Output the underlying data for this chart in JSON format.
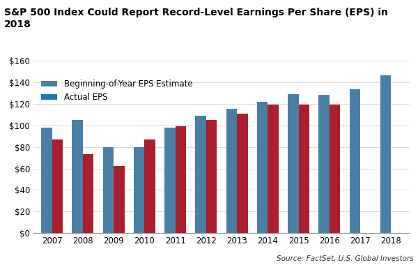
{
  "title": "S&P 500 Index Could Report Record-Level Earnings Per Share (EPS) in 2018",
  "years": [
    2007,
    2008,
    2009,
    2010,
    2011,
    2012,
    2013,
    2014,
    2015,
    2016,
    2017,
    2018
  ],
  "estimate_eps": [
    98,
    105,
    80,
    80,
    98,
    109,
    115,
    122,
    129,
    128,
    133,
    146
  ],
  "actual_eps": [
    87,
    73,
    62,
    87,
    99,
    105,
    111,
    119,
    119,
    119,
    null,
    null
  ],
  "bar_color_estimate": "#4a7fa5",
  "bar_color_actual": "#aa1e2e",
  "legend_labels": [
    "Beginning-of-Year EPS Estimate",
    "Actual EPS"
  ],
  "ylabel_ticks": [
    0,
    20,
    40,
    60,
    80,
    100,
    120,
    140,
    160
  ],
  "ylim": [
    0,
    162
  ],
  "source_text": "Source: FactSet, U.S. Global Investors",
  "title_fontsize": 10.0,
  "tick_fontsize": 8.5,
  "legend_fontsize": 8.5,
  "source_fontsize": 7.5,
  "bar_width": 0.35,
  "background_color": "#ffffff"
}
